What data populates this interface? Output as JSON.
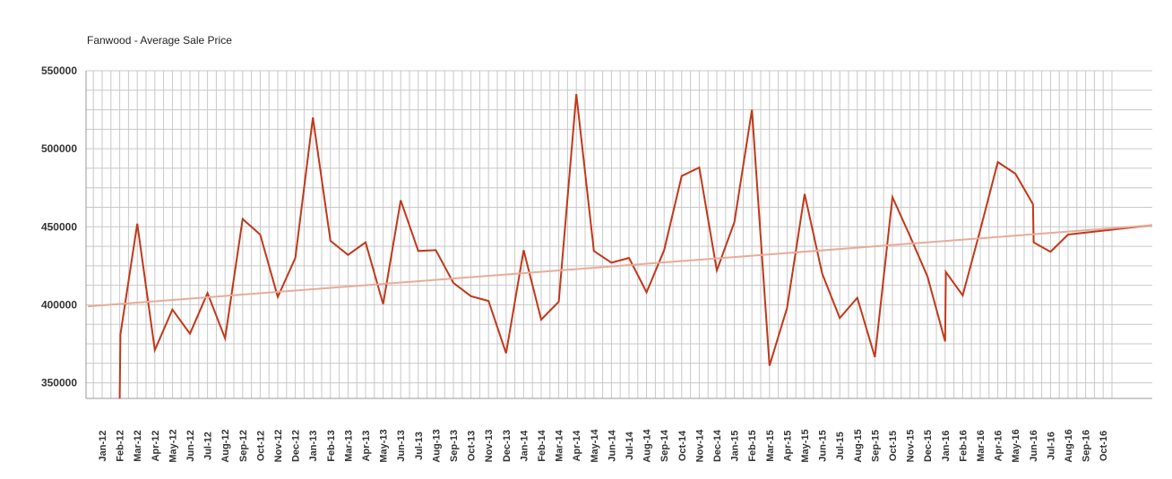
{
  "chart_data": {
    "type": "line",
    "title": "Fanwood - Average Sale Price",
    "xlabel": "",
    "ylabel": "",
    "ylim": [
      340000,
      550000
    ],
    "yticks": [
      350000,
      400000,
      450000,
      500000,
      550000
    ],
    "ytick_labels": [
      "350000",
      "400000",
      "450000",
      "500000",
      "550000"
    ],
    "grid": true,
    "legend": "none",
    "categories": [
      "Jan-12",
      "Feb-12",
      "Mar-12",
      "Apr-12",
      "May-12",
      "Jun-12",
      "Jul-12",
      "Aug-12",
      "Sep-12",
      "Oct-12",
      "Nov-12",
      "Dec-12",
      "Jan-13",
      "Feb-13",
      "Mar-13",
      "Apr-13",
      "May-13",
      "Jun-13",
      "Jul-13",
      "Aug-13",
      "Sep-13",
      "Oct-13",
      "Nov-13",
      "Dec-13",
      "Jan-14",
      "Feb-14",
      "Mar-14",
      "Apr-14",
      "May-14",
      "Jun-14",
      "Jul-14",
      "Aug-14",
      "Sep-14",
      "Oct-14",
      "Nov-14",
      "Dec-14",
      "Jan-15",
      "Feb-15",
      "Mar-15",
      "Apr-15",
      "May-15",
      "Jun-15",
      "Jul-15",
      "Aug-15",
      "Sep-15",
      "Oct-15",
      "Nov-15",
      "Dec-15",
      "Jan-16",
      "Feb-16",
      "Mar-16",
      "Apr-16",
      "May-16",
      "Jun-16",
      "Jul-16",
      "Aug-16",
      "Sep-16",
      "Oct-16"
    ],
    "series": [
      {
        "color": "#c1381a",
        "points": [
          [
            "Feb-12",
            340000
          ],
          [
            "Feb-12",
            381000
          ],
          [
            "Mar-12",
            452000
          ],
          [
            "Apr-12",
            371000
          ],
          [
            "May-12",
            397000
          ],
          [
            "Jun-12",
            381500
          ],
          [
            "Jul-12",
            407500
          ],
          [
            "Aug-12",
            378500
          ],
          [
            "Sep-12",
            455000
          ],
          [
            "Oct-12",
            445000
          ],
          [
            "Nov-12",
            405000
          ],
          [
            "Dec-12",
            430000
          ],
          [
            "Jan-13",
            520000
          ],
          [
            "Feb-13",
            441000
          ],
          [
            "Mar-13",
            432000
          ],
          [
            "Apr-13",
            440000
          ],
          [
            "May-13",
            400500
          ],
          [
            "Jun-13",
            467000
          ],
          [
            "Jul-13",
            434500
          ],
          [
            "Aug-13",
            435000
          ],
          [
            "Sep-13",
            414000
          ],
          [
            "Oct-13",
            405500
          ],
          [
            "Nov-13",
            402500
          ],
          [
            "Dec-13",
            369000
          ],
          [
            "Jan-14",
            435000
          ],
          [
            "Feb-14",
            390500
          ],
          [
            "Mar-14",
            402000
          ],
          [
            "Apr-14",
            535000
          ],
          [
            "May-14",
            434500
          ],
          [
            "Jun-14",
            427000
          ],
          [
            "Jul-14",
            430000
          ],
          [
            "Aug-14",
            408000
          ],
          [
            "Sep-14",
            435000
          ],
          [
            "Oct-14",
            482500
          ],
          [
            "Nov-14",
            488000
          ],
          [
            "Dec-14",
            422000
          ],
          [
            "Jan-15",
            453000
          ],
          [
            "Feb-15",
            525000
          ],
          [
            "Mar-15",
            361000
          ],
          [
            "Apr-15",
            398000
          ],
          [
            "May-15",
            471000
          ],
          [
            "Jun-15",
            420000
          ],
          [
            "Jul-15",
            391500
          ],
          [
            "Aug-15",
            404500
          ],
          [
            "Sep-15",
            366500
          ],
          [
            "Oct-15",
            469000
          ],
          [
            "Nov-15",
            444000
          ],
          [
            "Dec-15",
            418000
          ],
          [
            "Jan-16",
            376500
          ],
          [
            "Jan-16",
            421000
          ],
          [
            "Feb-16",
            406000
          ],
          [
            "Mar-16",
            448000
          ],
          [
            "Apr-16",
            491500
          ],
          [
            "May-16",
            484000
          ],
          [
            "Jun-16",
            464500
          ],
          [
            "Jun-16",
            440000
          ],
          [
            "Jul-16",
            434000
          ],
          [
            "Aug-16",
            445000
          ],
          [
            "Oct-16",
            451000
          ]
        ]
      },
      {
        "color": "#e8ab99",
        "trend": true,
        "points": [
          [
            "Jan-12",
            399000
          ],
          [
            "Oct-16",
            451000
          ]
        ]
      }
    ]
  }
}
